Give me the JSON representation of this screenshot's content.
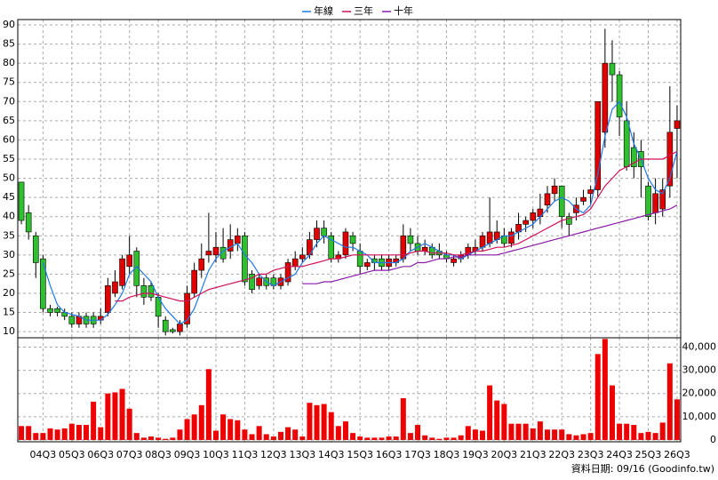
{
  "chart_data": [
    {
      "type": "candlestick",
      "series": [
        {
          "name": "年線",
          "color": "#1e78e6",
          "values": [
            null,
            null,
            null,
            28,
            22,
            17,
            15,
            14.5,
            14,
            13,
            13,
            13,
            14.5,
            17,
            20,
            25,
            27,
            25,
            23,
            19,
            16,
            14,
            12,
            13,
            16,
            21,
            26,
            29,
            31,
            32,
            33,
            30,
            28,
            25,
            23,
            22,
            23,
            24,
            25,
            28,
            30,
            33,
            35,
            34,
            33,
            32,
            32,
            31,
            30,
            28,
            28,
            28,
            28,
            29,
            31,
            32,
            33,
            32,
            31,
            30,
            30,
            29,
            30,
            31,
            32,
            33,
            34,
            35,
            35,
            36,
            37,
            38,
            40,
            42,
            44,
            45,
            44,
            42,
            41,
            43,
            51,
            61,
            68,
            70,
            66,
            59,
            55,
            50,
            47,
            46,
            50,
            57
          ]
        },
        {
          "name": "三年",
          "color": "#d0105a",
          "values": [
            null,
            null,
            null,
            null,
            null,
            null,
            null,
            null,
            null,
            null,
            null,
            null,
            null,
            18,
            18,
            19,
            19.5,
            20,
            20,
            19.5,
            19,
            18.5,
            18,
            18,
            19,
            20,
            21,
            21.5,
            22,
            22.5,
            23,
            23.5,
            24,
            25,
            25,
            26,
            26.5,
            27,
            27,
            27,
            27.5,
            28,
            28.5,
            29,
            29,
            29.5,
            30,
            30,
            30,
            30,
            30,
            30,
            30,
            30,
            30.5,
            31,
            31,
            30.5,
            30.5,
            30.5,
            30,
            30,
            30.5,
            31,
            31,
            31.5,
            32,
            32,
            32.5,
            33,
            34,
            35,
            36,
            37,
            38,
            39,
            39.5,
            40,
            40.5,
            42,
            45,
            48,
            50,
            52,
            53,
            54,
            55,
            55,
            55,
            55,
            56,
            57
          ]
        },
        {
          "name": "十年",
          "color": "#8a1aa8",
          "values": [
            null,
            null,
            null,
            null,
            null,
            null,
            null,
            null,
            null,
            null,
            null,
            null,
            null,
            null,
            null,
            null,
            null,
            null,
            null,
            null,
            null,
            null,
            null,
            null,
            null,
            null,
            null,
            null,
            null,
            null,
            null,
            null,
            null,
            null,
            null,
            null,
            null,
            null,
            null,
            22.5,
            22.5,
            22.5,
            23,
            23,
            23.5,
            24,
            24.5,
            25,
            25.5,
            26,
            26,
            26,
            26.5,
            27,
            27,
            28,
            28,
            28.5,
            29,
            29,
            29.5,
            29.5,
            30,
            30,
            30,
            30,
            30,
            30.5,
            31,
            31.5,
            32,
            32.5,
            33,
            33.5,
            34,
            34.5,
            35,
            35.5,
            36,
            36.5,
            37,
            37.5,
            38,
            38.5,
            39,
            39.5,
            40,
            40.5,
            41,
            41.5,
            42,
            43
          ]
        }
      ],
      "open": [
        49,
        41,
        35,
        29,
        16,
        16,
        15,
        14,
        12,
        14,
        14,
        13,
        15,
        20,
        22,
        27,
        31,
        22,
        22,
        19,
        13,
        10.5,
        10,
        12,
        20,
        26,
        30,
        30,
        32,
        31,
        33,
        35,
        25,
        22,
        24,
        24,
        22,
        23,
        27,
        29,
        30,
        34,
        37,
        35,
        29,
        30,
        35,
        31,
        27,
        29,
        29,
        27,
        28,
        29,
        35,
        33,
        31,
        32,
        31,
        30,
        28,
        29,
        30,
        31,
        32,
        33,
        34,
        35,
        33,
        36,
        38,
        39,
        40,
        43,
        46,
        48,
        40,
        41,
        44,
        46,
        47,
        62,
        80,
        77,
        65,
        58,
        57,
        48,
        41,
        42,
        48,
        63
      ],
      "high": [
        49,
        43,
        36,
        30,
        17,
        16.5,
        16,
        15,
        15,
        15,
        15,
        16,
        24,
        26,
        30,
        35,
        32,
        24,
        23,
        20,
        14,
        11,
        13,
        22,
        28,
        33,
        41,
        36,
        37,
        38,
        37,
        36,
        26,
        25,
        25,
        25,
        25,
        29,
        31,
        32,
        36,
        39,
        39,
        36,
        31,
        37,
        36,
        33,
        29,
        30,
        30,
        30,
        30,
        38,
        37,
        35,
        34,
        33,
        33,
        31,
        30,
        31,
        33,
        34,
        36,
        45,
        39,
        37,
        37,
        41,
        40,
        42,
        46,
        48,
        50,
        48,
        41,
        45,
        47,
        48,
        70,
        89,
        86,
        78,
        70,
        62,
        60,
        49,
        50,
        50,
        74,
        69
      ],
      "low": [
        38,
        34,
        24,
        15,
        14,
        14,
        13,
        11,
        11,
        11,
        11,
        12,
        14,
        19,
        21,
        25,
        19,
        17,
        18,
        11,
        9,
        9.5,
        9,
        11,
        19,
        24,
        28,
        28,
        28,
        29,
        31,
        22,
        20,
        21,
        21,
        21,
        21,
        22,
        26,
        28,
        29,
        32,
        33,
        28,
        28,
        29,
        31,
        25,
        26,
        26,
        26,
        26,
        27,
        28,
        31,
        30,
        30,
        29,
        29,
        28,
        27,
        28,
        29,
        30,
        31,
        32,
        33,
        32,
        32,
        34,
        36,
        37,
        38,
        41,
        44,
        37,
        35,
        39,
        43,
        43,
        45,
        58,
        70,
        61,
        52,
        50,
        45,
        39,
        38,
        40,
        45,
        50
      ],
      "close": [
        39,
        36,
        28,
        16,
        15,
        15,
        14,
        12,
        14,
        12,
        12,
        14,
        22,
        23,
        29,
        30,
        22,
        19,
        19,
        14,
        10,
        10,
        12,
        20,
        26,
        29,
        31,
        32,
        29,
        34,
        35,
        23,
        21,
        24,
        22,
        22,
        24,
        28,
        29,
        30,
        34,
        37,
        35,
        29,
        30,
        36,
        33,
        27,
        28,
        28,
        27,
        29,
        29,
        35,
        33,
        31,
        32,
        30,
        30,
        29,
        29,
        30,
        32,
        32,
        35,
        36,
        36,
        33,
        36,
        38,
        39,
        41,
        42,
        46,
        48,
        40,
        38,
        43,
        45,
        47,
        70,
        80,
        77,
        66,
        53,
        53,
        53,
        40,
        46,
        47,
        62,
        65
      ],
      "up_color": "#e00000",
      "down_color": "#2fc02f",
      "ylim": [
        8.4,
        91.4
      ],
      "yticks": [
        10,
        15,
        20,
        25,
        30,
        35,
        40,
        45,
        50,
        55,
        60,
        65,
        70,
        75,
        80,
        85,
        90
      ],
      "grid": true
    },
    {
      "type": "bar",
      "categories": [
        null,
        null,
        null,
        "04Q3",
        null,
        null,
        null,
        "05Q3",
        null,
        null,
        null,
        "06Q3",
        null,
        null,
        null,
        "07Q3",
        null,
        null,
        null,
        "08Q3",
        null,
        null,
        null,
        "09Q3",
        null,
        null,
        null,
        "10Q3",
        null,
        null,
        null,
        "11Q3",
        null,
        null,
        null,
        "12Q3",
        null,
        null,
        null,
        "13Q3",
        null,
        null,
        null,
        "14Q3",
        null,
        null,
        null,
        "15Q3",
        null,
        null,
        null,
        "16Q3",
        null,
        null,
        null,
        "17Q3",
        null,
        null,
        null,
        "18Q3",
        null,
        null,
        null,
        "19Q3",
        null,
        null,
        null,
        "20Q3",
        null,
        null,
        null,
        "21Q3",
        null,
        null,
        null,
        "22Q3",
        null,
        null,
        null,
        "23Q3",
        null,
        null,
        null,
        "24Q3",
        null,
        null,
        null,
        "25Q3",
        null,
        null,
        null,
        "26Q3"
      ],
      "values": [
        6000,
        6000,
        3000,
        3000,
        5000,
        4500,
        5000,
        7000,
        6500,
        6500,
        16500,
        5500,
        20000,
        20500,
        22000,
        13500,
        3000,
        1000,
        1500,
        1000,
        500,
        1000,
        4500,
        9000,
        11000,
        15000,
        30500,
        4000,
        11000,
        9000,
        8500,
        4500,
        2500,
        6000,
        2500,
        1500,
        3500,
        5500,
        4500,
        1500,
        16000,
        15000,
        15500,
        12000,
        6000,
        8000,
        3000,
        1500,
        1000,
        1000,
        1000,
        1500,
        1500,
        18000,
        3000,
        6500,
        2000,
        1000,
        500,
        1000,
        1000,
        2000,
        6000,
        4500,
        4000,
        23500,
        17000,
        15500,
        7000,
        7000,
        7000,
        5000,
        8000,
        4500,
        4500,
        4500,
        2500,
        2000,
        2500,
        3000,
        37000,
        43500,
        23500,
        7000,
        7000,
        6500,
        3000,
        3500,
        3000,
        7500,
        33000,
        17500
      ],
      "color": "#ee0000",
      "ylim": [
        0,
        44000
      ],
      "yticks": [
        0,
        {
          "value": 10000,
          "label": "10,000"
        },
        {
          "value": 20000,
          "label": "20,000"
        },
        {
          "value": 30000,
          "label": "30,000"
        },
        {
          "value": 40000,
          "label": "40,000"
        }
      ],
      "grid": true,
      "source": "資料日期: 09/16 (Goodinfo.tw)"
    }
  ]
}
